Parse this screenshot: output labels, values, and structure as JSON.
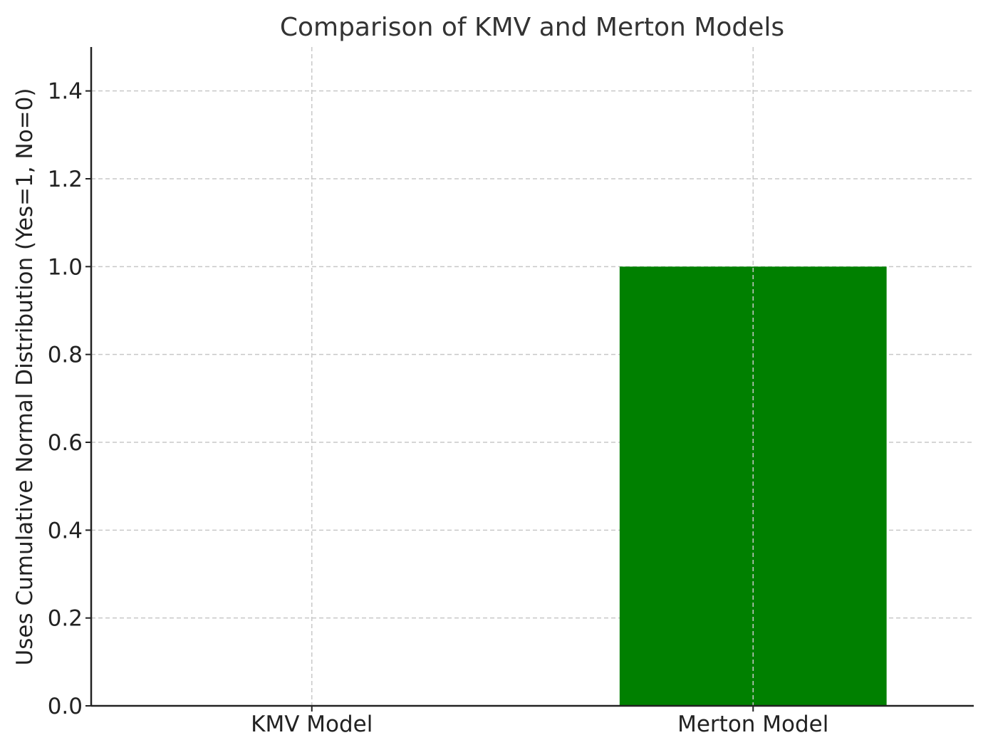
{
  "chart_data": {
    "type": "bar",
    "title": "Comparison of KMV and Merton Models",
    "xlabel": "",
    "ylabel": "Uses Cumulative Normal Distribution (Yes=1, No=0)",
    "categories": [
      "KMV Model",
      "Merton Model"
    ],
    "values": [
      0,
      1
    ],
    "bar_colors": [
      "#0000ff",
      "#008000"
    ],
    "ylim": [
      0,
      1.5
    ],
    "yticks": [
      "0.0",
      "0.2",
      "0.4",
      "0.6",
      "0.8",
      "1.0",
      "1.2",
      "1.4"
    ],
    "grid": true,
    "grid_style": "dashed",
    "legend": false
  }
}
